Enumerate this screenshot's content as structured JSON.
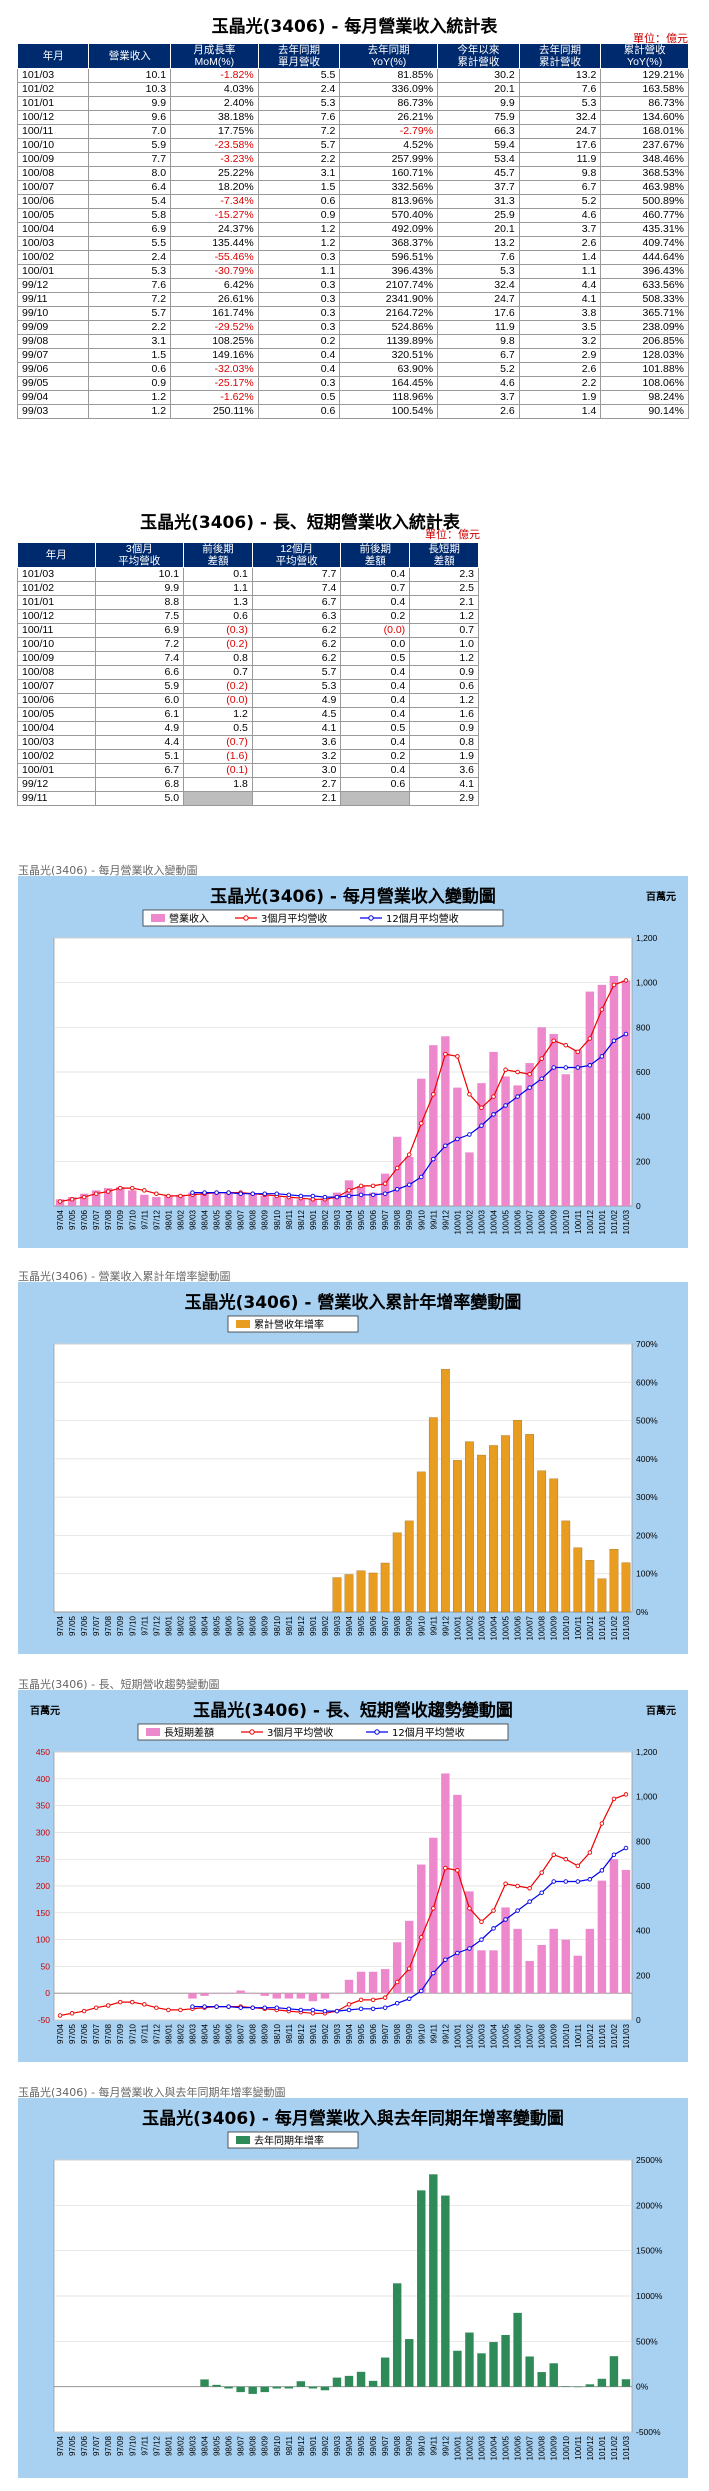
{
  "table1": {
    "title": "玉晶光(3406) - 每月營業收入統計表",
    "unit": "單位：億元",
    "headers": [
      "年月",
      "營業收入",
      "月成長率\nMoM(%)",
      "去年同期\n單月營收",
      "去年同期\nYoY(%)",
      "今年以來\n累計營收",
      "去年同期\n累計營收",
      "累計營收\nYoY(%)"
    ],
    "rows": [
      [
        "101/03",
        "10.1",
        "-1.82%",
        "5.5",
        "81.85%",
        "30.2",
        "13.2",
        "129.21%"
      ],
      [
        "101/02",
        "10.3",
        "4.03%",
        "2.4",
        "336.09%",
        "20.1",
        "7.6",
        "163.58%"
      ],
      [
        "101/01",
        "9.9",
        "2.40%",
        "5.3",
        "86.73%",
        "9.9",
        "5.3",
        "86.73%"
      ],
      [
        "100/12",
        "9.6",
        "38.18%",
        "7.6",
        "26.21%",
        "75.9",
        "32.4",
        "134.60%"
      ],
      [
        "100/11",
        "7.0",
        "17.75%",
        "7.2",
        "-2.79%",
        "66.3",
        "24.7",
        "168.01%"
      ],
      [
        "100/10",
        "5.9",
        "-23.58%",
        "5.7",
        "4.52%",
        "59.4",
        "17.6",
        "237.67%"
      ],
      [
        "100/09",
        "7.7",
        "-3.23%",
        "2.2",
        "257.99%",
        "53.4",
        "11.9",
        "348.46%"
      ],
      [
        "100/08",
        "8.0",
        "25.22%",
        "3.1",
        "160.71%",
        "45.7",
        "9.8",
        "368.53%"
      ],
      [
        "100/07",
        "6.4",
        "18.20%",
        "1.5",
        "332.56%",
        "37.7",
        "6.7",
        "463.98%"
      ],
      [
        "100/06",
        "5.4",
        "-7.34%",
        "0.6",
        "813.96%",
        "31.3",
        "5.2",
        "500.89%"
      ],
      [
        "100/05",
        "5.8",
        "-15.27%",
        "0.9",
        "570.40%",
        "25.9",
        "4.6",
        "460.77%"
      ],
      [
        "100/04",
        "6.9",
        "24.37%",
        "1.2",
        "492.09%",
        "20.1",
        "3.7",
        "435.31%"
      ],
      [
        "100/03",
        "5.5",
        "135.44%",
        "1.2",
        "368.37%",
        "13.2",
        "2.6",
        "409.74%"
      ],
      [
        "100/02",
        "2.4",
        "-55.46%",
        "0.3",
        "596.51%",
        "7.6",
        "1.4",
        "444.64%"
      ],
      [
        "100/01",
        "5.3",
        "-30.79%",
        "1.1",
        "396.43%",
        "5.3",
        "1.1",
        "396.43%"
      ],
      [
        "99/12",
        "7.6",
        "6.42%",
        "0.3",
        "2107.74%",
        "32.4",
        "4.4",
        "633.56%"
      ],
      [
        "99/11",
        "7.2",
        "26.61%",
        "0.3",
        "2341.90%",
        "24.7",
        "4.1",
        "508.33%"
      ],
      [
        "99/10",
        "5.7",
        "161.74%",
        "0.3",
        "2164.72%",
        "17.6",
        "3.8",
        "365.71%"
      ],
      [
        "99/09",
        "2.2",
        "-29.52%",
        "0.3",
        "524.86%",
        "11.9",
        "3.5",
        "238.09%"
      ],
      [
        "99/08",
        "3.1",
        "108.25%",
        "0.2",
        "1139.89%",
        "9.8",
        "3.2",
        "206.85%"
      ],
      [
        "99/07",
        "1.5",
        "149.16%",
        "0.4",
        "320.51%",
        "6.7",
        "2.9",
        "128.03%"
      ],
      [
        "99/06",
        "0.6",
        "-32.03%",
        "0.4",
        "63.90%",
        "5.2",
        "2.6",
        "101.88%"
      ],
      [
        "99/05",
        "0.9",
        "-25.17%",
        "0.3",
        "164.45%",
        "4.6",
        "2.2",
        "108.06%"
      ],
      [
        "99/04",
        "1.2",
        "-1.62%",
        "0.5",
        "118.96%",
        "3.7",
        "1.9",
        "98.24%"
      ],
      [
        "99/03",
        "1.2",
        "250.11%",
        "0.6",
        "100.54%",
        "2.6",
        "1.4",
        "90.14%"
      ]
    ]
  },
  "table2": {
    "title": "玉晶光(3406) - 長、短期營業收入統計表",
    "unit": "單位：億元",
    "headers": [
      "年月",
      "3個月\n平均營收",
      "前後期\n差額",
      "12個月\n平均營收",
      "前後期\n差額",
      "長短期\n差額"
    ],
    "rows": [
      [
        "101/03",
        "10.1",
        "0.1",
        "7.7",
        "0.4",
        "2.3"
      ],
      [
        "101/02",
        "9.9",
        "1.1",
        "7.4",
        "0.7",
        "2.5"
      ],
      [
        "101/01",
        "8.8",
        "1.3",
        "6.7",
        "0.4",
        "2.1"
      ],
      [
        "100/12",
        "7.5",
        "0.6",
        "6.3",
        "0.2",
        "1.2"
      ],
      [
        "100/11",
        "6.9",
        "(0.3)",
        "6.2",
        "(0.0)",
        "0.7"
      ],
      [
        "100/10",
        "7.2",
        "(0.2)",
        "6.2",
        "0.0",
        "1.0"
      ],
      [
        "100/09",
        "7.4",
        "0.8",
        "6.2",
        "0.5",
        "1.2"
      ],
      [
        "100/08",
        "6.6",
        "0.7",
        "5.7",
        "0.4",
        "0.9"
      ],
      [
        "100/07",
        "5.9",
        "(0.2)",
        "5.3",
        "0.4",
        "0.6"
      ],
      [
        "100/06",
        "6.0",
        "(0.0)",
        "4.9",
        "0.4",
        "1.2"
      ],
      [
        "100/05",
        "6.1",
        "1.2",
        "4.5",
        "0.4",
        "1.6"
      ],
      [
        "100/04",
        "4.9",
        "0.5",
        "4.1",
        "0.5",
        "0.9"
      ],
      [
        "100/03",
        "4.4",
        "(0.7)",
        "3.6",
        "0.4",
        "0.8"
      ],
      [
        "100/02",
        "5.1",
        "(1.6)",
        "3.2",
        "0.2",
        "1.9"
      ],
      [
        "100/01",
        "6.7",
        "(0.1)",
        "3.0",
        "0.4",
        "3.6"
      ],
      [
        "99/12",
        "6.8",
        "1.8",
        "2.7",
        "0.6",
        "4.1"
      ],
      [
        "99/11",
        "5.0",
        "",
        "2.1",
        "",
        "2.9"
      ]
    ]
  },
  "captions": {
    "c1": "玉晶光(3406) - 每月營業收入變動圖",
    "c2": "玉晶光(3406) -  營業收入累計年增率變動圖",
    "c3": "玉晶光(3406) -  長、短期營收趨勢變動圖",
    "c4": "玉晶光(3406) -   每月營業收入與去年同期年增率變動圖"
  },
  "x_labels": [
    "97/04",
    "97/05",
    "97/06",
    "97/07",
    "97/08",
    "97/09",
    "97/10",
    "97/11",
    "97/12",
    "98/01",
    "98/02",
    "98/03",
    "98/04",
    "98/05",
    "98/06",
    "98/07",
    "98/08",
    "98/09",
    "98/10",
    "98/11",
    "98/12",
    "99/01",
    "99/02",
    "99/03",
    "99/04",
    "99/05",
    "99/06",
    "99/07",
    "99/08",
    "99/09",
    "99/10",
    "99/11",
    "99/12",
    "100/01",
    "100/02",
    "100/03",
    "100/04",
    "100/05",
    "100/06",
    "100/07",
    "100/08",
    "100/09",
    "100/10",
    "100/11",
    "100/12",
    "101/01",
    "101/02",
    "101/03"
  ],
  "colors": {
    "pink": "#ee88cc",
    "orange": "#e89c20",
    "green": "#2e8b57",
    "red": "#ee0000",
    "blue": "#0000ee",
    "bg": "#a8d0f0"
  },
  "chart_data": [
    {
      "type": "bar",
      "title": "玉晶光(3406) - 每月營業收入變動圖",
      "unit": "百萬元",
      "ylim": [
        0,
        1200
      ],
      "yticks": [
        0,
        200,
        400,
        600,
        800,
        1000,
        1200
      ],
      "legend": "top",
      "series": [
        {
          "name": "營業收入",
          "kind": "bar",
          "values": [
            30,
            40,
            55,
            70,
            80,
            85,
            70,
            50,
            40,
            45,
            50,
            60,
            60,
            60,
            60,
            55,
            55,
            45,
            40,
            35,
            30,
            30,
            35,
            60,
            115,
            90,
            60,
            145,
            310,
            220,
            570,
            720,
            760,
            530,
            240,
            550,
            690,
            580,
            540,
            640,
            800,
            770,
            590,
            700,
            960,
            990,
            1030,
            1010
          ]
        },
        {
          "name": "3個月平均營收",
          "kind": "line",
          "values": [
            20,
            30,
            40,
            55,
            65,
            80,
            80,
            70,
            55,
            45,
            45,
            50,
            55,
            60,
            60,
            60,
            55,
            50,
            45,
            40,
            35,
            30,
            30,
            40,
            70,
            90,
            90,
            100,
            170,
            230,
            370,
            500,
            680,
            670,
            500,
            440,
            490,
            610,
            600,
            590,
            660,
            740,
            720,
            690,
            750,
            880,
            990,
            1010
          ]
        },
        {
          "name": "12個月平均營收",
          "kind": "line",
          "values": [
            null,
            null,
            null,
            null,
            null,
            null,
            null,
            null,
            null,
            null,
            null,
            60,
            60,
            60,
            60,
            55,
            55,
            55,
            55,
            50,
            45,
            45,
            40,
            40,
            45,
            50,
            50,
            55,
            75,
            95,
            130,
            210,
            270,
            300,
            320,
            360,
            410,
            450,
            490,
            530,
            570,
            620,
            620,
            620,
            630,
            670,
            740,
            770
          ]
        }
      ]
    },
    {
      "type": "bar",
      "title": "玉晶光(3406) -  營業收入累計年增率變動圖",
      "ylim": [
        0,
        700
      ],
      "yticks": [
        0,
        100,
        200,
        300,
        400,
        500,
        600,
        700
      ],
      "ytick_suffix": "%",
      "legend": "top",
      "series": [
        {
          "name": "累計營收年增率",
          "kind": "bar",
          "values": [
            null,
            null,
            null,
            null,
            null,
            null,
            null,
            null,
            null,
            null,
            null,
            null,
            null,
            null,
            null,
            null,
            null,
            null,
            null,
            null,
            null,
            null,
            null,
            90,
            98,
            108,
            102,
            128,
            207,
            238,
            366,
            508,
            634,
            396,
            445,
            410,
            435,
            461,
            501,
            464,
            369,
            348,
            238,
            168,
            135,
            87,
            164,
            129
          ]
        }
      ]
    },
    {
      "type": "bar",
      "title": "玉晶光(3406) -  長、短期營收趨勢變動圖",
      "unit": "百萬元",
      "ylim_left": [
        -50,
        450
      ],
      "yticks_left": [
        -50,
        0,
        50,
        100,
        150,
        200,
        250,
        300,
        350,
        400,
        450
      ],
      "ylim_right": [
        0,
        1200
      ],
      "yticks_right": [
        0,
        200,
        400,
        600,
        800,
        1000,
        1200
      ],
      "legend": "top",
      "series": [
        {
          "name": "長短期差額",
          "kind": "bar",
          "axis": "left",
          "values": [
            null,
            null,
            null,
            null,
            null,
            null,
            null,
            null,
            null,
            null,
            null,
            -10,
            -5,
            0,
            0,
            5,
            0,
            -5,
            -10,
            -10,
            -10,
            -15,
            -10,
            0,
            25,
            40,
            40,
            45,
            95,
            135,
            240,
            290,
            410,
            370,
            190,
            80,
            80,
            160,
            120,
            60,
            90,
            120,
            100,
            70,
            120,
            210,
            250,
            230
          ]
        },
        {
          "name": "3個月平均營收",
          "kind": "line",
          "axis": "right",
          "values": [
            20,
            30,
            40,
            55,
            65,
            80,
            80,
            70,
            55,
            45,
            45,
            50,
            55,
            60,
            60,
            60,
            55,
            50,
            45,
            40,
            35,
            30,
            30,
            40,
            70,
            90,
            90,
            100,
            170,
            230,
            370,
            500,
            680,
            670,
            500,
            440,
            490,
            610,
            600,
            590,
            660,
            740,
            720,
            690,
            750,
            880,
            990,
            1010
          ]
        },
        {
          "name": "12個月平均營收",
          "kind": "line",
          "axis": "right",
          "values": [
            null,
            null,
            null,
            null,
            null,
            null,
            null,
            null,
            null,
            null,
            null,
            60,
            60,
            60,
            60,
            55,
            55,
            55,
            55,
            50,
            45,
            45,
            40,
            40,
            45,
            50,
            50,
            55,
            75,
            95,
            130,
            210,
            270,
            300,
            320,
            360,
            410,
            450,
            490,
            530,
            570,
            620,
            620,
            620,
            630,
            670,
            740,
            770
          ]
        }
      ]
    },
    {
      "type": "bar",
      "title": "玉晶光(3406) -  每月營業收入與去年同期年增率變動圖",
      "ylim": [
        -500,
        2500
      ],
      "yticks": [
        -500,
        0,
        500,
        1000,
        1500,
        2000,
        2500
      ],
      "ytick_suffix": "%",
      "legend": "top",
      "series": [
        {
          "name": "去年同期年增率",
          "kind": "bar",
          "values": [
            null,
            null,
            null,
            null,
            null,
            null,
            null,
            null,
            null,
            null,
            null,
            null,
            80,
            20,
            -20,
            -60,
            -80,
            -60,
            -20,
            -20,
            60,
            -20,
            -40,
            100,
            119,
            164,
            64,
            321,
            1140,
            525,
            2165,
            2342,
            2108,
            396,
            597,
            368,
            492,
            570,
            814,
            333,
            161,
            258,
            5,
            -3,
            26,
            87,
            336,
            82
          ]
        }
      ]
    }
  ]
}
